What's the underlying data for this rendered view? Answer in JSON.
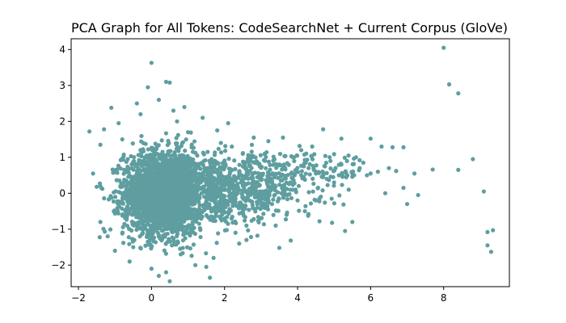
{
  "chart_data": {
    "type": "scatter",
    "title": "PCA Graph for All Tokens: CodeSearchNet + Current Corpus (GloVe)",
    "xlabel": "",
    "ylabel": "",
    "xlim": [
      -2.2,
      9.8
    ],
    "ylim": [
      -2.6,
      4.3
    ],
    "xticks": [
      -2,
      0,
      2,
      4,
      6,
      8
    ],
    "yticks": [
      -2,
      -1,
      0,
      1,
      2,
      3,
      4
    ],
    "xtick_labels": [
      "−2",
      "0",
      "2",
      "4",
      "6",
      "8"
    ],
    "ytick_labels": [
      "−2",
      "−1",
      "0",
      "1",
      "2",
      "3",
      "4"
    ],
    "grid": false,
    "legend": "none",
    "point_color": "#5f9ea0",
    "series": [
      {
        "points": [
          [
            0.0,
            3.63
          ],
          [
            0.4,
            3.1
          ],
          [
            0.5,
            3.08
          ],
          [
            -0.1,
            2.95
          ],
          [
            0.2,
            2.6
          ],
          [
            -0.4,
            2.5
          ],
          [
            0.9,
            2.4
          ],
          [
            -1.1,
            2.38
          ],
          [
            0.6,
            2.3
          ],
          [
            1.4,
            2.1
          ],
          [
            2.1,
            1.95
          ],
          [
            -1.7,
            1.72
          ],
          [
            -1.3,
            1.78
          ],
          [
            -0.9,
            1.95
          ],
          [
            1.8,
            1.75
          ],
          [
            2.8,
            1.55
          ],
          [
            3.6,
            1.55
          ],
          [
            3.2,
            1.45
          ],
          [
            -1.4,
            1.35
          ],
          [
            4.7,
            1.78
          ],
          [
            5.2,
            1.52
          ],
          [
            6.0,
            1.52
          ],
          [
            6.3,
            1.3
          ],
          [
            6.6,
            1.28
          ],
          [
            6.9,
            1.28
          ],
          [
            4.4,
            1.3
          ],
          [
            4.1,
            1.2
          ],
          [
            5.6,
            1.0
          ],
          [
            5.8,
            0.85
          ],
          [
            6.5,
            0.7
          ],
          [
            6.7,
            0.62
          ],
          [
            7.2,
            0.55
          ],
          [
            7.7,
            0.66
          ],
          [
            8.4,
            0.65
          ],
          [
            8.8,
            0.95
          ],
          [
            6.0,
            0.55
          ],
          [
            5.5,
            0.55
          ],
          [
            5.9,
            0.5
          ],
          [
            6.4,
            0.0
          ],
          [
            6.9,
            0.15
          ],
          [
            7.0,
            -0.3
          ],
          [
            7.3,
            -0.05
          ],
          [
            9.1,
            0.05
          ],
          [
            5.5,
            -0.8
          ],
          [
            5.3,
            -1.05
          ],
          [
            4.6,
            -0.78
          ],
          [
            4.2,
            -0.5
          ],
          [
            4.3,
            -0.58
          ],
          [
            3.5,
            -1.52
          ],
          [
            2.9,
            -1.18
          ],
          [
            2.3,
            -1.1
          ],
          [
            2.6,
            -1.3
          ],
          [
            -1.4,
            -0.8
          ],
          [
            -1.6,
            0.55
          ],
          [
            -1.4,
            0.2
          ],
          [
            -1.5,
            0.18
          ],
          [
            1.5,
            -2.05
          ],
          [
            1.6,
            -2.35
          ],
          [
            0.5,
            -2.45
          ],
          [
            0.4,
            -2.2
          ],
          [
            0.0,
            -2.1
          ],
          [
            -1.0,
            -1.6
          ],
          [
            8.0,
            4.05
          ],
          [
            8.15,
            3.03
          ],
          [
            8.4,
            2.78
          ],
          [
            9.2,
            -1.08
          ],
          [
            9.35,
            -1.03
          ],
          [
            9.2,
            -1.45
          ],
          [
            9.3,
            -1.63
          ],
          [
            3.5,
            0.8
          ],
          [
            3.8,
            0.3
          ],
          [
            4.0,
            -0.2
          ],
          [
            3.1,
            1.1
          ],
          [
            2.7,
            0.9
          ],
          [
            2.4,
            0.6
          ],
          [
            3.0,
            -0.7
          ],
          [
            3.3,
            -0.3
          ],
          [
            2.6,
            -0.9
          ],
          [
            4.9,
            0.9
          ],
          [
            5.0,
            0.3
          ],
          [
            4.5,
            0.6
          ],
          [
            3.9,
            1.0
          ],
          [
            2.2,
            1.3
          ],
          [
            2.4,
            -1.4
          ],
          [
            1.7,
            -1.8
          ],
          [
            -1.2,
            -1.2
          ],
          [
            -0.8,
            1.5
          ],
          [
            1.0,
            1.7
          ],
          [
            0.8,
            -1.7
          ],
          [
            -0.6,
            -1.9
          ],
          [
            1.2,
            -2.0
          ],
          [
            -0.3,
            2.2
          ],
          [
            0.7,
            2.0
          ],
          [
            0.2,
            -2.3
          ],
          [
            -0.5,
            -1.5
          ],
          [
            1.9,
            1.4
          ],
          [
            2.5,
            1.1
          ],
          [
            5.2,
            0.8
          ],
          [
            4.8,
            0.4
          ],
          [
            4.3,
            0.7
          ],
          [
            3.7,
            -0.6
          ],
          [
            4.1,
            0.5
          ],
          [
            3.4,
            -0.9
          ],
          [
            2.8,
            0.2
          ],
          [
            5.4,
            0.1
          ],
          [
            6.2,
            0.6
          ],
          [
            5.7,
            0.7
          ],
          [
            4.5,
            -0.2
          ],
          [
            3.6,
            0.1
          ],
          [
            2.9,
            -0.4
          ]
        ]
      }
    ]
  }
}
